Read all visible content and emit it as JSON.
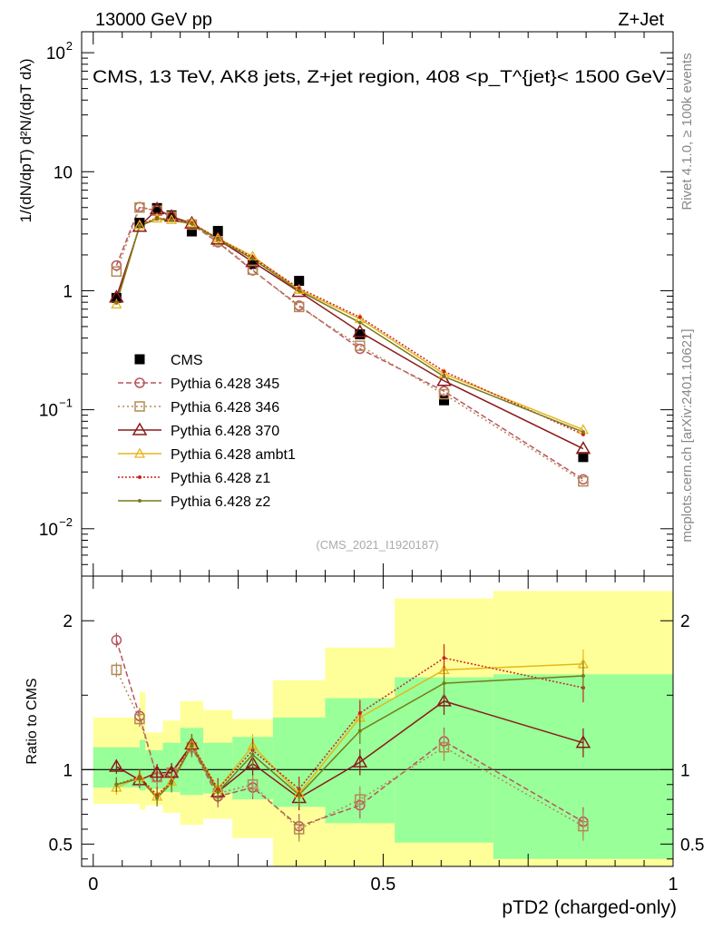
{
  "header": {
    "left": "13000 GeV pp",
    "right": "Z+Jet"
  },
  "side_text": {
    "rivet": "Rivet 4.1.0, ≥ 100k events",
    "mcplots": "mcplots.cern.ch [arXiv:2401.10621]"
  },
  "analysis_id": "(CMS_2021_I1920187)",
  "colors": {
    "data": "#000000",
    "p345": "#b8545e",
    "p346": "#b38a55",
    "p370": "#8b1a1a",
    "ambt1": "#e8b51c",
    "z1": "#cc2222",
    "z2": "#7a7a1a",
    "band_yellow": "#ffff99",
    "band_green": "#99ff99"
  },
  "chart_data": [
    {
      "type": "line",
      "title": "CMS, 13 TeV, AK8 jets, Z+jet region, 408 <p_T^{jet}< 1500 GeV",
      "ylabel": "1/(dN/dpT) d²N/(dpT dλ)",
      "yscale": "log",
      "ylim": [
        0.004,
        150
      ],
      "xlim": [
        -0.02,
        1.0
      ],
      "x": [
        0.04,
        0.08,
        0.11,
        0.135,
        0.17,
        0.215,
        0.275,
        0.355,
        0.46,
        0.605,
        0.845
      ],
      "series": [
        {
          "name": "CMS",
          "marker": "square",
          "values": [
            0.87,
            3.72,
            4.95,
            4.3,
            3.15,
            3.18,
            1.68,
            1.21,
            0.43,
            0.12,
            0.04
          ]
        },
        {
          "name": "Pythia 6.428 345",
          "marker": "circle",
          "values": [
            1.63,
            5.05,
            4.7,
            4.2,
            3.6,
            2.55,
            1.48,
            0.75,
            0.325,
            0.143,
            0.026
          ]
        },
        {
          "name": "Pythia 6.428 346",
          "marker": "square-open",
          "values": [
            1.45,
            5.0,
            4.7,
            4.2,
            3.6,
            2.6,
            1.5,
            0.73,
            0.345,
            0.135,
            0.025
          ]
        },
        {
          "name": "Pythia 6.428 370",
          "marker": "triangle-open",
          "values": [
            0.88,
            3.45,
            4.85,
            4.2,
            3.68,
            2.7,
            1.75,
            0.98,
            0.45,
            0.175,
            0.047
          ]
        },
        {
          "name": "Pythia 6.428 ambt1",
          "marker": "triangle-small",
          "values": [
            0.77,
            3.55,
            4.05,
            3.95,
            3.7,
            2.75,
            1.95,
            1.02,
            0.58,
            0.2,
            0.068
          ]
        },
        {
          "name": "Pythia 6.428 z1",
          "marker": "dot",
          "values": [
            0.8,
            3.55,
            4.1,
            3.95,
            3.7,
            2.75,
            1.9,
            1.05,
            0.6,
            0.21,
            0.062
          ]
        },
        {
          "name": "Pythia 6.428 z2",
          "marker": "dot",
          "values": [
            0.79,
            3.5,
            4.0,
            3.9,
            3.65,
            2.7,
            1.85,
            1.0,
            0.54,
            0.19,
            0.065
          ]
        }
      ]
    },
    {
      "type": "line",
      "xlabel": "pTD2 (charged-only)",
      "ylabel": "Ratio to CMS",
      "ylim": [
        0.35,
        2.3
      ],
      "xlim": [
        -0.02,
        1.0
      ],
      "x_ticks": [
        "0",
        "0.5",
        "1"
      ],
      "y_ticks": [
        "0.5",
        "1",
        "2"
      ],
      "x": [
        0.04,
        0.08,
        0.11,
        0.135,
        0.17,
        0.215,
        0.275,
        0.355,
        0.46,
        0.605,
        0.845
      ],
      "band_edges": [
        0.0,
        0.08,
        0.09,
        0.12,
        0.15,
        0.19,
        0.24,
        0.31,
        0.4,
        0.52,
        0.69,
        1.0
      ],
      "yellow_band": [
        [
          0.77,
          1.35
        ],
        [
          0.73,
          1.52
        ],
        [
          0.76,
          1.25
        ],
        [
          0.71,
          1.33
        ],
        [
          0.63,
          1.46
        ],
        [
          0.67,
          1.4
        ],
        [
          0.54,
          1.34
        ],
        [
          0.35,
          1.6
        ],
        [
          0.35,
          1.82
        ],
        [
          0.35,
          2.15
        ],
        [
          0.35,
          2.2
        ]
      ],
      "green_band": [
        [
          0.88,
          1.15
        ],
        [
          0.86,
          1.2
        ],
        [
          0.87,
          1.13
        ],
        [
          0.85,
          1.18
        ],
        [
          0.83,
          1.28
        ],
        [
          0.84,
          1.18
        ],
        [
          0.8,
          1.22
        ],
        [
          0.75,
          1.35
        ],
        [
          0.64,
          1.48
        ],
        [
          0.51,
          1.62
        ],
        [
          0.4,
          1.64
        ]
      ],
      "series": [
        {
          "name": "Pythia 6.428 345",
          "values": [
            1.87,
            1.36,
            0.95,
            0.98,
            1.15,
            0.82,
            0.88,
            0.62,
            0.76,
            1.19,
            0.65
          ]
        },
        {
          "name": "Pythia 6.428 346",
          "values": [
            1.67,
            1.34,
            0.95,
            0.98,
            1.15,
            0.84,
            0.9,
            0.6,
            0.8,
            1.15,
            0.62
          ]
        },
        {
          "name": "Pythia 6.428 370",
          "values": [
            1.02,
            0.93,
            0.98,
            0.98,
            1.17,
            0.85,
            1.04,
            0.81,
            1.05,
            1.46,
            1.18
          ]
        },
        {
          "name": "Pythia 6.428 ambt1",
          "values": [
            0.88,
            0.95,
            0.82,
            0.92,
            1.17,
            0.87,
            1.16,
            0.84,
            1.35,
            1.67,
            1.71
          ]
        },
        {
          "name": "Pythia 6.428 z1",
          "values": [
            0.9,
            0.95,
            0.83,
            0.92,
            1.17,
            0.87,
            1.13,
            0.87,
            1.38,
            1.75,
            1.55
          ]
        },
        {
          "name": "Pythia 6.428 z2",
          "values": [
            0.9,
            0.94,
            0.81,
            0.91,
            1.16,
            0.85,
            1.1,
            0.83,
            1.26,
            1.58,
            1.63
          ]
        }
      ]
    }
  ]
}
